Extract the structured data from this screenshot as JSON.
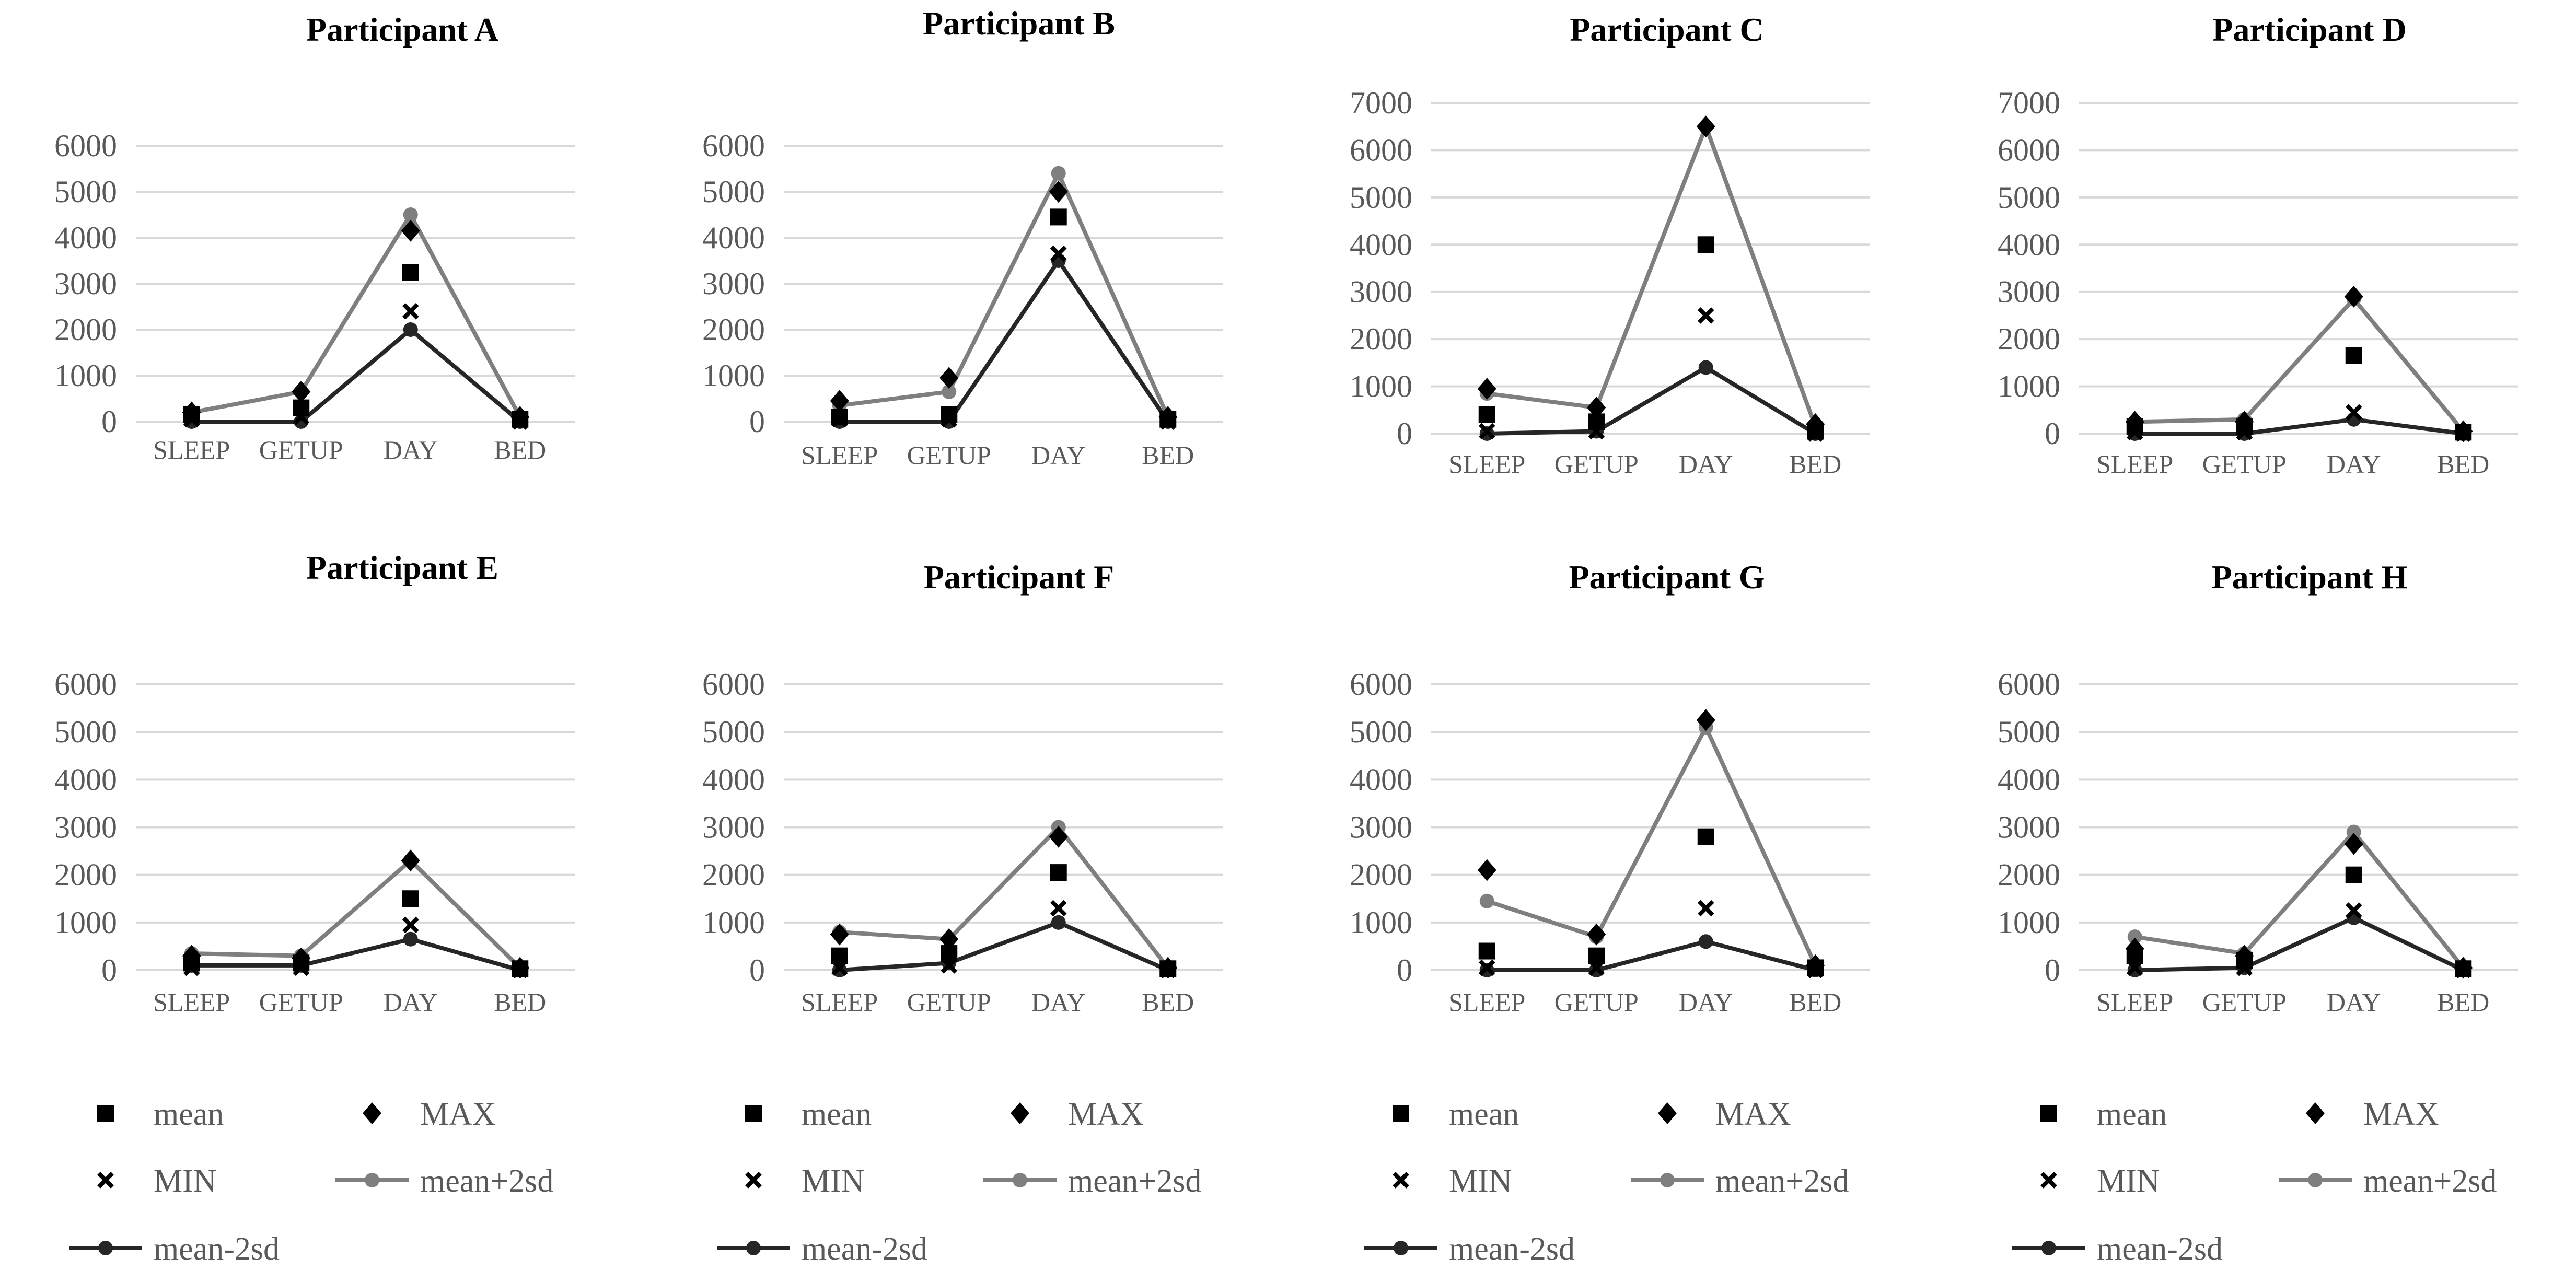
{
  "chart_data": [
    {
      "type": "line",
      "title": "Participant A",
      "categories": [
        "SLEEP",
        "GETUP",
        "DAY",
        "BED"
      ],
      "ylim": [
        0,
        6000
      ],
      "yticks": [
        0,
        1000,
        2000,
        3000,
        4000,
        5000,
        6000
      ],
      "series": [
        {
          "name": "mean",
          "values": [
            150,
            300,
            3250,
            50
          ]
        },
        {
          "name": "MAX",
          "values": [
            200,
            650,
            4150,
            100
          ]
        },
        {
          "name": "MIN",
          "values": [
            50,
            100,
            2400,
            0
          ]
        },
        {
          "name": "mean+2sd",
          "values": [
            200,
            650,
            4500,
            100
          ]
        },
        {
          "name": "mean-2sd",
          "values": [
            0,
            0,
            2000,
            0
          ]
        }
      ]
    },
    {
      "type": "line",
      "title": "Participant B",
      "categories": [
        "SLEEP",
        "GETUP",
        "DAY",
        "BED"
      ],
      "ylim": [
        0,
        6000
      ],
      "yticks": [
        0,
        1000,
        2000,
        3000,
        4000,
        5000,
        6000
      ],
      "series": [
        {
          "name": "mean",
          "values": [
            100,
            150,
            4450,
            50
          ]
        },
        {
          "name": "MAX",
          "values": [
            450,
            950,
            5000,
            100
          ]
        },
        {
          "name": "MIN",
          "values": [
            50,
            50,
            3650,
            0
          ]
        },
        {
          "name": "mean+2sd",
          "values": [
            350,
            650,
            5400,
            100
          ]
        },
        {
          "name": "mean-2sd",
          "values": [
            0,
            0,
            3500,
            0
          ]
        }
      ]
    },
    {
      "type": "line",
      "title": "Participant C",
      "categories": [
        "SLEEP",
        "GETUP",
        "DAY",
        "BED"
      ],
      "ylim": [
        0,
        7000
      ],
      "yticks": [
        0,
        1000,
        2000,
        3000,
        4000,
        5000,
        6000,
        7000
      ],
      "series": [
        {
          "name": "mean",
          "values": [
            400,
            250,
            4000,
            50
          ]
        },
        {
          "name": "MAX",
          "values": [
            950,
            550,
            6500,
            200
          ]
        },
        {
          "name": "MIN",
          "values": [
            50,
            50,
            2500,
            0
          ]
        },
        {
          "name": "mean+2sd",
          "values": [
            850,
            550,
            6500,
            150
          ]
        },
        {
          "name": "mean-2sd",
          "values": [
            0,
            50,
            1400,
            0
          ]
        }
      ]
    },
    {
      "type": "line",
      "title": "Participant D",
      "categories": [
        "SLEEP",
        "GETUP",
        "DAY",
        "BED"
      ],
      "ylim": [
        0,
        7000
      ],
      "yticks": [
        0,
        1000,
        2000,
        3000,
        4000,
        5000,
        6000,
        7000
      ],
      "series": [
        {
          "name": "mean",
          "values": [
            150,
            150,
            1650,
            30
          ]
        },
        {
          "name": "MAX",
          "values": [
            250,
            250,
            2900,
            50
          ]
        },
        {
          "name": "MIN",
          "values": [
            30,
            30,
            450,
            0
          ]
        },
        {
          "name": "mean+2sd",
          "values": [
            250,
            300,
            2850,
            50
          ]
        },
        {
          "name": "mean-2sd",
          "values": [
            0,
            0,
            300,
            0
          ]
        }
      ]
    },
    {
      "type": "line",
      "title": "Participant E",
      "categories": [
        "SLEEP",
        "GETUP",
        "DAY",
        "BED"
      ],
      "ylim": [
        0,
        6000
      ],
      "yticks": [
        0,
        1000,
        2000,
        3000,
        4000,
        5000,
        6000
      ],
      "series": [
        {
          "name": "mean",
          "values": [
            150,
            150,
            1500,
            30
          ]
        },
        {
          "name": "MAX",
          "values": [
            300,
            250,
            2300,
            50
          ]
        },
        {
          "name": "MIN",
          "values": [
            50,
            50,
            950,
            0
          ]
        },
        {
          "name": "mean+2sd",
          "values": [
            350,
            300,
            2300,
            50
          ]
        },
        {
          "name": "mean-2sd",
          "values": [
            100,
            100,
            650,
            0
          ]
        }
      ]
    },
    {
      "type": "line",
      "title": "Participant F",
      "categories": [
        "SLEEP",
        "GETUP",
        "DAY",
        "BED"
      ],
      "ylim": [
        0,
        6000
      ],
      "yticks": [
        0,
        1000,
        2000,
        3000,
        4000,
        5000,
        6000
      ],
      "series": [
        {
          "name": "mean",
          "values": [
            300,
            350,
            2050,
            30
          ]
        },
        {
          "name": "MAX",
          "values": [
            750,
            650,
            2800,
            50
          ]
        },
        {
          "name": "MIN",
          "values": [
            50,
            100,
            1300,
            0
          ]
        },
        {
          "name": "mean+2sd",
          "values": [
            800,
            650,
            3000,
            50
          ]
        },
        {
          "name": "mean-2sd",
          "values": [
            0,
            150,
            1000,
            0
          ]
        }
      ]
    },
    {
      "type": "line",
      "title": "Participant G",
      "categories": [
        "SLEEP",
        "GETUP",
        "DAY",
        "BED"
      ],
      "ylim": [
        0,
        6000
      ],
      "yticks": [
        0,
        1000,
        2000,
        3000,
        4000,
        5000,
        6000
      ],
      "series": [
        {
          "name": "mean",
          "values": [
            400,
            300,
            2800,
            50
          ]
        },
        {
          "name": "MAX",
          "values": [
            2100,
            750,
            5250,
            100
          ]
        },
        {
          "name": "MIN",
          "values": [
            50,
            50,
            1300,
            0
          ]
        },
        {
          "name": "mean+2sd",
          "values": [
            1450,
            700,
            5100,
            100
          ]
        },
        {
          "name": "mean-2sd",
          "values": [
            0,
            0,
            600,
            0
          ]
        }
      ]
    },
    {
      "type": "line",
      "title": "Participant H",
      "categories": [
        "SLEEP",
        "GETUP",
        "DAY",
        "BED"
      ],
      "ylim": [
        0,
        6000
      ],
      "yticks": [
        0,
        1000,
        2000,
        3000,
        4000,
        5000,
        6000
      ],
      "series": [
        {
          "name": "mean",
          "values": [
            300,
            200,
            2000,
            30
          ]
        },
        {
          "name": "MAX",
          "values": [
            450,
            300,
            2650,
            50
          ]
        },
        {
          "name": "MIN",
          "values": [
            50,
            50,
            1250,
            0
          ]
        },
        {
          "name": "mean+2sd",
          "values": [
            700,
            350,
            2900,
            50
          ]
        },
        {
          "name": "mean-2sd",
          "values": [
            0,
            50,
            1100,
            0
          ]
        }
      ]
    }
  ],
  "legend": [
    {
      "name": "mean",
      "marker": "square"
    },
    {
      "name": "MAX",
      "marker": "diamond"
    },
    {
      "name": "MIN",
      "marker": "cross"
    },
    {
      "name": "mean+2sd",
      "marker": "line-dot"
    },
    {
      "name": "mean-2sd",
      "marker": "line-dot"
    }
  ],
  "colors": {
    "mean": "#000000",
    "MAX": "#000000",
    "MIN": "#000000",
    "mean+2sd": "#7f7f7f",
    "mean-2sd": "#262626",
    "grid": "#d9d9d9",
    "tick": "#595959"
  }
}
